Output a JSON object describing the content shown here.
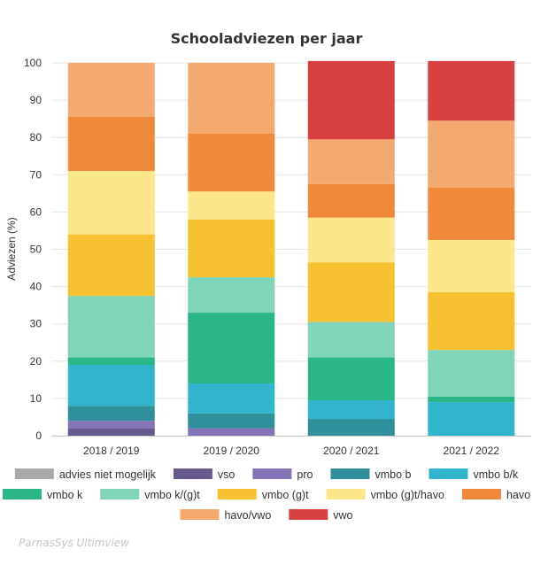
{
  "chart_data": {
    "type": "bar",
    "stacked": true,
    "title": "Schooladviezen per jaar",
    "ylabel": "Adviezen (%)",
    "xlabel": "",
    "ylim": [
      0,
      100
    ],
    "yticks": [
      0,
      10,
      20,
      30,
      40,
      50,
      60,
      70,
      80,
      90,
      100
    ],
    "grid": true,
    "legend_position": "bottom",
    "categories": [
      "2018 / 2019",
      "2019 / 2020",
      "2020 / 2021",
      "2021 / 2022"
    ],
    "series": [
      {
        "name": "advies niet mogelijk",
        "color": "#a9a9a9",
        "values": [
          0,
          0,
          0,
          0
        ]
      },
      {
        "name": "vso",
        "color": "#665a8c",
        "values": [
          2,
          0,
          0,
          0
        ]
      },
      {
        "name": "pro",
        "color": "#8574b8",
        "values": [
          2,
          2,
          0,
          0
        ]
      },
      {
        "name": "vmbo b",
        "color": "#2f8f9b",
        "values": [
          4,
          4,
          4.5,
          0
        ]
      },
      {
        "name": "vmbo b/k",
        "color": "#30b5cc",
        "values": [
          11,
          8,
          5,
          9
        ]
      },
      {
        "name": "vmbo k",
        "color": "#2bb68a",
        "values": [
          2,
          19,
          11.5,
          1.5
        ]
      },
      {
        "name": "vmbo k/(g)t",
        "color": "#80d4ba",
        "values": [
          16.5,
          9.5,
          9.5,
          12.5
        ]
      },
      {
        "name": "vmbo (g)t",
        "color": "#f8c132",
        "values": [
          16.5,
          15.5,
          16,
          15.5
        ]
      },
      {
        "name": "vmbo (g)t/havo",
        "color": "#fbe68a",
        "values": [
          17,
          7.5,
          12,
          14
        ]
      },
      {
        "name": "havo",
        "color": "#f0893a",
        "values": [
          14.5,
          15.5,
          9,
          14
        ]
      },
      {
        "name": "havo/vwo",
        "color": "#f4a96f",
        "values": [
          14.5,
          19,
          12,
          18
        ]
      },
      {
        "name": "vwo",
        "color": "#d94141",
        "values": [
          0,
          0,
          21,
          16
        ]
      }
    ]
  },
  "footer": {
    "watermark": "ParnasSys Ultimview"
  }
}
